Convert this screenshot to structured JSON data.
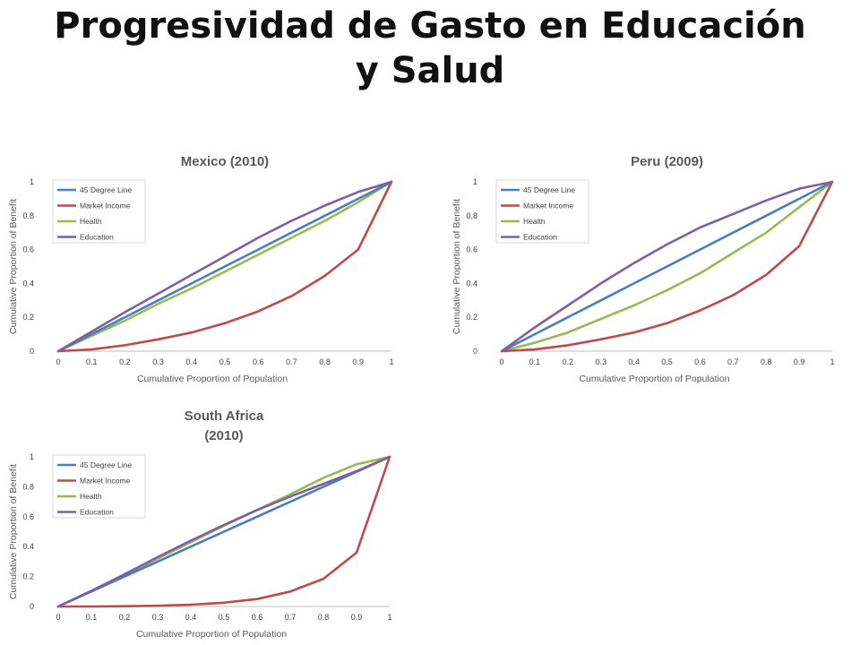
{
  "slide": {
    "title_line1": "Progresividad de Gasto en Educación",
    "title_line2": "y Salud"
  },
  "colors": {
    "45 Degree Line": "#4a7ebb",
    "Market Income": "#be4b48",
    "Health": "#98b954",
    "Education": "#7d60a0"
  },
  "chart_data": [
    {
      "type": "line",
      "title": [
        "Mexico (2010)"
      ],
      "xlabel": "Cumulative Proportion of Population",
      "ylabel": "Cumulative Proportion of Benefit",
      "xlim": [
        0,
        1
      ],
      "ylim": [
        0,
        1
      ],
      "x_ticks": [
        "0",
        "0.1",
        "0.2",
        "0.3",
        "0.4",
        "0.5",
        "0.6",
        "0.7",
        "0.8",
        "0.9",
        "1"
      ],
      "y_ticks": [
        "0",
        "0.2",
        "0.4",
        "0.6",
        "0.8",
        "1"
      ],
      "legend_position": "top-left",
      "x": [
        0,
        0.1,
        0.2,
        0.3,
        0.4,
        0.5,
        0.6,
        0.7,
        0.8,
        0.9,
        1
      ],
      "series": [
        {
          "name": "45 Degree Line",
          "values": [
            0,
            0.1,
            0.2,
            0.3,
            0.4,
            0.5,
            0.6,
            0.7,
            0.8,
            0.9,
            1
          ]
        },
        {
          "name": "Market Income",
          "values": [
            0,
            0.01,
            0.035,
            0.07,
            0.11,
            0.165,
            0.235,
            0.325,
            0.445,
            0.6,
            1
          ]
        },
        {
          "name": "Health",
          "values": [
            0,
            0.09,
            0.18,
            0.28,
            0.37,
            0.47,
            0.57,
            0.67,
            0.77,
            0.88,
            1
          ]
        },
        {
          "name": "Education",
          "values": [
            0,
            0.115,
            0.23,
            0.34,
            0.45,
            0.56,
            0.67,
            0.77,
            0.86,
            0.94,
            1
          ]
        }
      ]
    },
    {
      "type": "line",
      "title": [
        "Peru (2009)"
      ],
      "xlabel": "Cumulative Proportion of Population",
      "ylabel": "Cumulative Proportion of Benefit",
      "xlim": [
        0,
        1
      ],
      "ylim": [
        0,
        1
      ],
      "x_ticks": [
        "0",
        "0.1",
        "0.2",
        "0.3",
        "0.4",
        "0.5",
        "0.6",
        "0.7",
        "0.8",
        "0.9",
        "1"
      ],
      "y_ticks": [
        "0",
        "0.2",
        "0.4",
        "0.6",
        "0.8",
        "1"
      ],
      "legend_position": "top-left",
      "x": [
        0,
        0.1,
        0.2,
        0.3,
        0.4,
        0.5,
        0.6,
        0.7,
        0.8,
        0.9,
        1
      ],
      "series": [
        {
          "name": "45 Degree Line",
          "values": [
            0,
            0.1,
            0.2,
            0.3,
            0.4,
            0.5,
            0.6,
            0.7,
            0.8,
            0.9,
            1
          ]
        },
        {
          "name": "Market Income",
          "values": [
            0,
            0.01,
            0.035,
            0.07,
            0.11,
            0.165,
            0.24,
            0.33,
            0.45,
            0.62,
            1
          ]
        },
        {
          "name": "Health",
          "values": [
            0,
            0.05,
            0.11,
            0.19,
            0.27,
            0.36,
            0.46,
            0.58,
            0.7,
            0.85,
            1
          ]
        },
        {
          "name": "Education",
          "values": [
            0,
            0.14,
            0.27,
            0.4,
            0.52,
            0.63,
            0.73,
            0.81,
            0.89,
            0.96,
            1
          ]
        }
      ]
    },
    {
      "type": "line",
      "title": [
        "South Africa",
        "(2010)"
      ],
      "xlabel": "Cumulative Proportion of Population",
      "ylabel": "Cumulative Proportion of Benefit",
      "xlim": [
        0,
        1
      ],
      "ylim": [
        0,
        1
      ],
      "x_ticks": [
        "0",
        "0.1",
        "0.2",
        "0.3",
        "0.4",
        "0.5",
        "0.6",
        "0.7",
        "0.8",
        "0.9",
        "1"
      ],
      "y_ticks": [
        "0",
        "0.2",
        "0.4",
        "0.6",
        "0.8",
        "1"
      ],
      "legend_position": "top-left",
      "x": [
        0,
        0.1,
        0.2,
        0.3,
        0.4,
        0.5,
        0.6,
        0.7,
        0.8,
        0.9,
        1
      ],
      "series": [
        {
          "name": "45 Degree Line",
          "values": [
            0,
            0.1,
            0.2,
            0.3,
            0.4,
            0.5,
            0.6,
            0.7,
            0.8,
            0.9,
            1
          ]
        },
        {
          "name": "Market Income",
          "values": [
            0,
            0.0,
            0.002,
            0.005,
            0.012,
            0.025,
            0.05,
            0.1,
            0.185,
            0.36,
            1
          ]
        },
        {
          "name": "Health",
          "values": [
            0,
            0.105,
            0.21,
            0.32,
            0.43,
            0.54,
            0.645,
            0.75,
            0.86,
            0.95,
            1
          ]
        },
        {
          "name": "Education",
          "values": [
            0,
            0.105,
            0.215,
            0.33,
            0.44,
            0.545,
            0.645,
            0.735,
            0.82,
            0.905,
            1
          ]
        }
      ]
    }
  ]
}
